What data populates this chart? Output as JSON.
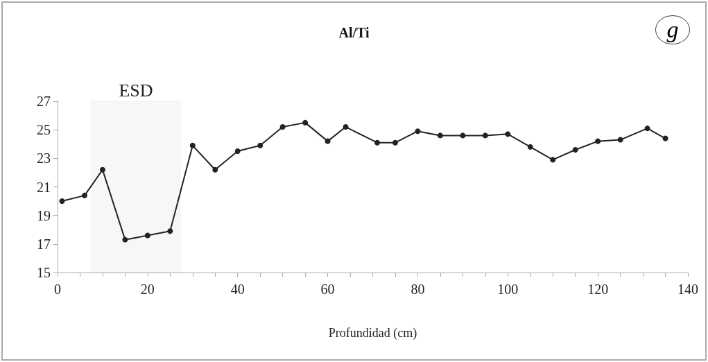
{
  "chart_data": {
    "type": "line",
    "title": "Al/Ti",
    "xlabel": "Profundidad (cm)",
    "x": [
      1,
      6,
      10,
      15,
      20,
      25,
      30,
      35,
      40,
      45,
      50,
      55,
      60,
      64,
      71,
      75,
      80,
      85,
      90,
      95,
      100,
      105,
      110,
      115,
      120,
      125,
      131,
      135
    ],
    "series": [
      {
        "color": "#222222",
        "values": [
          20.0,
          20.4,
          22.2,
          17.3,
          17.6,
          17.9,
          23.9,
          22.2,
          23.5,
          23.9,
          25.2,
          25.5,
          24.2,
          25.2,
          24.1,
          24.1,
          24.9,
          24.6,
          24.6,
          24.6,
          24.7,
          23.8,
          22.9,
          23.6,
          24.2,
          24.3,
          25.1,
          24.4
        ]
      }
    ],
    "xlim": [
      0,
      140
    ],
    "xticks": [
      0,
      {
        "value": 5,
        "label": null
      },
      {
        "value": 10,
        "label": null
      },
      {
        "value": 15,
        "label": null
      },
      20,
      {
        "value": 25,
        "label": null
      },
      {
        "value": 30,
        "label": null
      },
      {
        "value": 35,
        "label": null
      },
      40,
      {
        "value": 45,
        "label": null
      },
      {
        "value": 50,
        "label": null
      },
      {
        "value": 55,
        "label": null
      },
      60,
      {
        "value": 65,
        "label": null
      },
      {
        "value": 70,
        "label": null
      },
      {
        "value": 75,
        "label": null
      },
      80,
      {
        "value": 85,
        "label": null
      },
      {
        "value": 90,
        "label": null
      },
      {
        "value": 95,
        "label": null
      },
      100,
      {
        "value": 105,
        "label": null
      },
      {
        "value": 110,
        "label": null
      },
      {
        "value": 115,
        "label": null
      },
      120,
      {
        "value": 125,
        "label": null
      },
      {
        "value": 130,
        "label": null
      },
      {
        "value": 135,
        "label": null
      },
      140
    ],
    "ylim": [
      15,
      27
    ],
    "yticks": [
      15,
      17,
      19,
      21,
      23,
      25,
      27
    ],
    "bands": [
      {
        "axis": "x",
        "from": 7.5,
        "to": 27.3,
        "label": "ESD",
        "color": "#999999"
      }
    ],
    "annotations": [
      "g"
    ],
    "marker": "circle",
    "line_style": "solid",
    "grid": false
  }
}
